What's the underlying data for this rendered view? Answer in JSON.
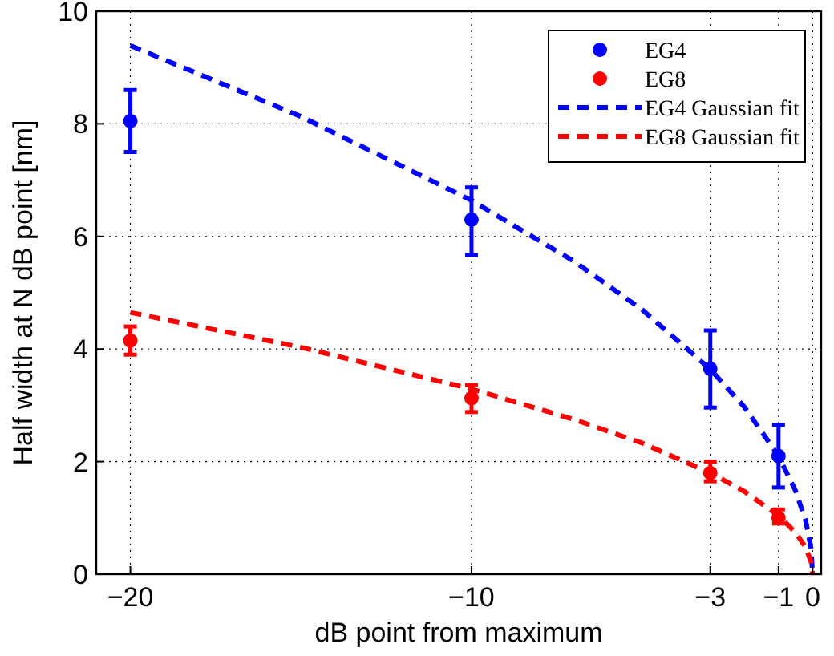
{
  "chart_data": {
    "type": "scatter",
    "xlabel": "dB point from maximum",
    "ylabel": "Half width at N dB point [nm]",
    "xlim": [
      -21,
      0.25
    ],
    "xticks": [
      -20,
      -10,
      -3,
      -1,
      0
    ],
    "ylim": [
      0,
      10
    ],
    "yticks": [
      0,
      2,
      4,
      6,
      8,
      10
    ],
    "grid": true,
    "legend": "top right",
    "marker": "circle",
    "series": [
      {
        "name": "EG4",
        "color": "#0000ff",
        "x": [
          -20,
          -10,
          -3,
          -1
        ],
        "values": [
          8.05,
          6.3,
          3.65,
          2.1
        ],
        "errors": [
          [
            7.5,
            8.6
          ],
          [
            5.67,
            6.87
          ],
          [
            2.96,
            4.33
          ],
          [
            1.54,
            2.65
          ]
        ]
      },
      {
        "name": "EG8",
        "color": "#ff0000",
        "x": [
          -20,
          -10,
          -3,
          -1
        ],
        "values": [
          4.15,
          3.13,
          1.8,
          1.0
        ],
        "errors": [
          [
            3.9,
            4.4
          ],
          [
            2.88,
            3.36
          ],
          [
            1.65,
            2.0
          ],
          [
            0.9,
            1.15
          ]
        ]
      },
      {
        "name": "EG4 Gaussian fit",
        "type": "line",
        "line_style": "dashed",
        "marker": "none",
        "color": "#0000ff",
        "x": [
          -20,
          -15,
          -10,
          -7,
          -5,
          -3,
          -2,
          -1,
          -0.5,
          -0.2,
          -0.05,
          0
        ],
        "values": [
          9.39,
          8.13,
          6.64,
          5.56,
          4.7,
          3.64,
          2.97,
          2.1,
          1.48,
          0.94,
          0.47,
          0
        ]
      },
      {
        "name": "EG8 Gaussian fit",
        "type": "line",
        "line_style": "dashed",
        "marker": "none",
        "color": "#ff0000",
        "x": [
          -20,
          -15,
          -10,
          -7,
          -5,
          -3,
          -2,
          -1,
          -0.5,
          -0.2,
          -0.05,
          0
        ],
        "values": [
          4.65,
          4.03,
          3.29,
          2.75,
          2.33,
          1.8,
          1.47,
          1.04,
          0.74,
          0.47,
          0.23,
          0
        ]
      }
    ]
  }
}
